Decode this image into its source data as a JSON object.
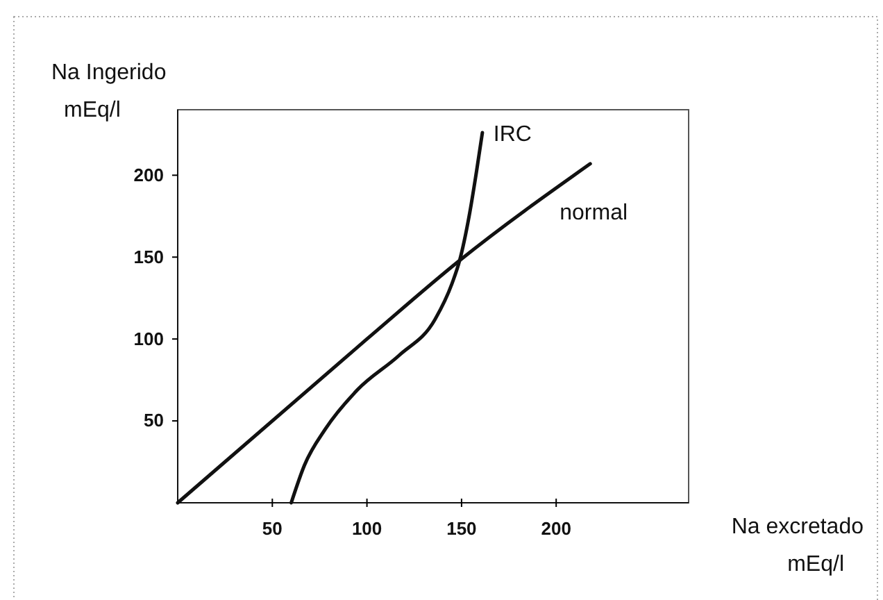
{
  "chart_data": {
    "type": "line",
    "xlabel": "Na excretado\nmEq/l",
    "ylabel": "Na Ingerido\nmEq/l",
    "xlim": [
      0,
      270
    ],
    "ylim": [
      0,
      240
    ],
    "xticks": [
      50,
      100,
      150,
      200
    ],
    "yticks": [
      50,
      100,
      150,
      200
    ],
    "series": [
      {
        "name": "IRC",
        "color": "#111111",
        "x": [
          60,
          67,
          78,
          95,
          117,
          136,
          145,
          149,
          154,
          158,
          161
        ],
        "values": [
          0,
          23,
          45,
          69,
          90,
          112,
          134,
          148,
          175,
          203,
          226
        ]
      },
      {
        "name": "normal",
        "color": "#111111",
        "x": [
          0,
          100,
          149,
          218
        ],
        "values": [
          0,
          100,
          148,
          207
        ]
      }
    ]
  }
}
